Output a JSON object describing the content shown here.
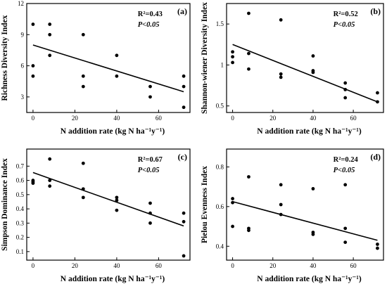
{
  "chart_data": [
    {
      "type": "scatter",
      "panel_label": "(a)",
      "xlabel": "N addition rate (kg N ha⁻¹y⁻¹)",
      "ylabel": "Richness Diversity Index",
      "xlim": [
        -3,
        75
      ],
      "ylim": [
        1.5,
        12
      ],
      "xticks": [
        0,
        20,
        40,
        60
      ],
      "yticks": [
        3,
        6,
        9,
        12
      ],
      "r2_text": "R²=0.43",
      "p_text": "P<0.05",
      "points": [
        [
          0,
          5
        ],
        [
          0,
          6
        ],
        [
          0,
          10
        ],
        [
          8,
          7
        ],
        [
          8,
          9
        ],
        [
          8,
          10
        ],
        [
          24,
          4
        ],
        [
          24,
          5
        ],
        [
          24,
          9
        ],
        [
          40,
          5
        ],
        [
          40,
          7
        ],
        [
          56,
          3
        ],
        [
          56,
          4
        ],
        [
          72,
          2
        ],
        [
          72,
          4
        ],
        [
          72,
          5
        ]
      ],
      "fit_line": [
        [
          0,
          8.0
        ],
        [
          72,
          3.5
        ]
      ]
    },
    {
      "type": "scatter",
      "panel_label": "(b)",
      "xlabel": "N addition rate (kg N ha⁻¹y⁻¹)",
      "ylabel": "Shannon-wiener Diversity Index",
      "xlim": [
        -3,
        75
      ],
      "ylim": [
        0.42,
        1.75
      ],
      "xticks": [
        0,
        20,
        40,
        60
      ],
      "yticks": [
        0.5,
        1.0,
        1.5
      ],
      "r2_text": "R²=0.52",
      "p_text": "P<0.05",
      "points": [
        [
          0,
          1.03
        ],
        [
          0,
          1.1
        ],
        [
          0,
          1.16
        ],
        [
          8,
          0.95
        ],
        [
          8,
          1.14
        ],
        [
          8,
          1.63
        ],
        [
          24,
          0.85
        ],
        [
          24,
          0.89
        ],
        [
          24,
          1.55
        ],
        [
          40,
          0.91
        ],
        [
          40,
          0.93
        ],
        [
          40,
          1.11
        ],
        [
          56,
          0.6
        ],
        [
          56,
          0.7
        ],
        [
          56,
          0.78
        ],
        [
          72,
          0.55
        ],
        [
          72,
          0.66
        ]
      ],
      "fit_line": [
        [
          0,
          1.25
        ],
        [
          72,
          0.55
        ]
      ]
    },
    {
      "type": "scatter",
      "panel_label": "(c)",
      "xlabel": "N addition rate (kg N ha⁻¹y⁻¹)",
      "ylabel": "Simpson Dominance Index",
      "xlim": [
        -3,
        75
      ],
      "ylim": [
        0.04,
        0.82
      ],
      "xticks": [
        0,
        20,
        40,
        60
      ],
      "yticks": [
        0.1,
        0.2,
        0.3,
        0.4,
        0.5,
        0.6,
        0.7
      ],
      "r2_text": "R²=0.67",
      "p_text": "P<0.05",
      "points": [
        [
          0,
          0.58
        ],
        [
          0,
          0.59
        ],
        [
          0,
          0.6
        ],
        [
          8,
          0.56
        ],
        [
          8,
          0.6
        ],
        [
          8,
          0.75
        ],
        [
          24,
          0.48
        ],
        [
          24,
          0.54
        ],
        [
          24,
          0.72
        ],
        [
          40,
          0.39
        ],
        [
          40,
          0.46
        ],
        [
          40,
          0.48
        ],
        [
          56,
          0.3
        ],
        [
          56,
          0.37
        ],
        [
          56,
          0.44
        ],
        [
          72,
          0.07
        ],
        [
          72,
          0.31
        ],
        [
          72,
          0.37
        ]
      ],
      "fit_line": [
        [
          0,
          0.655
        ],
        [
          72,
          0.28
        ]
      ]
    },
    {
      "type": "scatter",
      "panel_label": "(d)",
      "xlabel": "N addition rate (kg N ha⁻¹y⁻¹)",
      "ylabel": "Pielou Evenness Index",
      "xlim": [
        -3,
        75
      ],
      "ylim": [
        0.33,
        0.89
      ],
      "xticks": [
        0,
        20,
        40,
        60
      ],
      "yticks": [
        0.4,
        0.6,
        0.8
      ],
      "r2_text": "R²=0.24",
      "p_text": "P<0.05",
      "points": [
        [
          0,
          0.5
        ],
        [
          0,
          0.62
        ],
        [
          0,
          0.64
        ],
        [
          8,
          0.48
        ],
        [
          8,
          0.49
        ],
        [
          8,
          0.75
        ],
        [
          24,
          0.56
        ],
        [
          24,
          0.61
        ],
        [
          24,
          0.71
        ],
        [
          40,
          0.46
        ],
        [
          40,
          0.47
        ],
        [
          40,
          0.69
        ],
        [
          56,
          0.42
        ],
        [
          56,
          0.49
        ],
        [
          56,
          0.71
        ],
        [
          72,
          0.39
        ],
        [
          72,
          0.41
        ]
      ],
      "fit_line": [
        [
          0,
          0.625
        ],
        [
          72,
          0.43
        ]
      ]
    }
  ]
}
